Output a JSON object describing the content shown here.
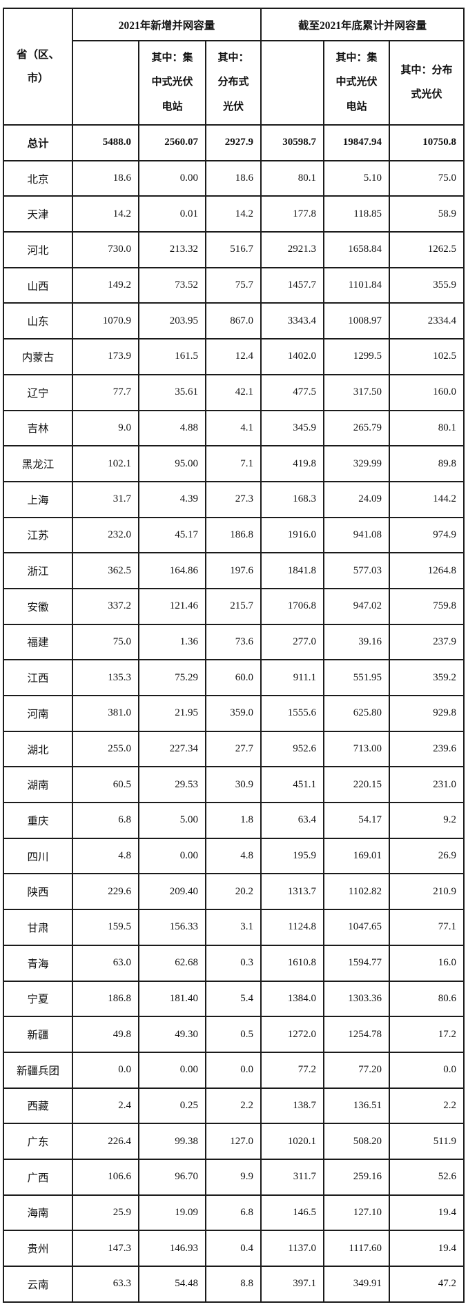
{
  "table": {
    "corner_header": "省（区、\n市）",
    "group_headers": {
      "new_2021": "2021年新增并网容量",
      "cumulative_2021": "截至2021年底累计并网容量"
    },
    "sub_headers": {
      "g1_total": "",
      "g1_centralized": "其中：集\n中式光伏\n电站",
      "g1_distributed": "其中：\n分布式\n光伏",
      "g2_total": "",
      "g2_centralized": "其中：集\n中式光伏\n电站",
      "g2_distributed": "其中：分布\n式光伏"
    },
    "total_row": {
      "label": "总计",
      "values": [
        "5488.0",
        "2560.07",
        "2927.9",
        "30598.7",
        "19847.94",
        "10750.8"
      ]
    },
    "rows": [
      {
        "label": "北京",
        "values": [
          "18.6",
          "0.00",
          "18.6",
          "80.1",
          "5.10",
          "75.0"
        ]
      },
      {
        "label": "天津",
        "values": [
          "14.2",
          "0.01",
          "14.2",
          "177.8",
          "118.85",
          "58.9"
        ]
      },
      {
        "label": "河北",
        "values": [
          "730.0",
          "213.32",
          "516.7",
          "2921.3",
          "1658.84",
          "1262.5"
        ]
      },
      {
        "label": "山西",
        "values": [
          "149.2",
          "73.52",
          "75.7",
          "1457.7",
          "1101.84",
          "355.9"
        ]
      },
      {
        "label": "山东",
        "values": [
          "1070.9",
          "203.95",
          "867.0",
          "3343.4",
          "1008.97",
          "2334.4"
        ]
      },
      {
        "label": "内蒙古",
        "values": [
          "173.9",
          "161.5",
          "12.4",
          "1402.0",
          "1299.5",
          "102.5"
        ]
      },
      {
        "label": "辽宁",
        "values": [
          "77.7",
          "35.61",
          "42.1",
          "477.5",
          "317.50",
          "160.0"
        ]
      },
      {
        "label": "吉林",
        "values": [
          "9.0",
          "4.88",
          "4.1",
          "345.9",
          "265.79",
          "80.1"
        ]
      },
      {
        "label": "黑龙江",
        "values": [
          "102.1",
          "95.00",
          "7.1",
          "419.8",
          "329.99",
          "89.8"
        ]
      },
      {
        "label": "上海",
        "values": [
          "31.7",
          "4.39",
          "27.3",
          "168.3",
          "24.09",
          "144.2"
        ]
      },
      {
        "label": "江苏",
        "values": [
          "232.0",
          "45.17",
          "186.8",
          "1916.0",
          "941.08",
          "974.9"
        ]
      },
      {
        "label": "浙江",
        "values": [
          "362.5",
          "164.86",
          "197.6",
          "1841.8",
          "577.03",
          "1264.8"
        ]
      },
      {
        "label": "安徽",
        "values": [
          "337.2",
          "121.46",
          "215.7",
          "1706.8",
          "947.02",
          "759.8"
        ]
      },
      {
        "label": "福建",
        "values": [
          "75.0",
          "1.36",
          "73.6",
          "277.0",
          "39.16",
          "237.9"
        ]
      },
      {
        "label": "江西",
        "values": [
          "135.3",
          "75.29",
          "60.0",
          "911.1",
          "551.95",
          "359.2"
        ]
      },
      {
        "label": "河南",
        "values": [
          "381.0",
          "21.95",
          "359.0",
          "1555.6",
          "625.80",
          "929.8"
        ]
      },
      {
        "label": "湖北",
        "values": [
          "255.0",
          "227.34",
          "27.7",
          "952.6",
          "713.00",
          "239.6"
        ]
      },
      {
        "label": "湖南",
        "values": [
          "60.5",
          "29.53",
          "30.9",
          "451.1",
          "220.15",
          "231.0"
        ]
      },
      {
        "label": "重庆",
        "values": [
          "6.8",
          "5.00",
          "1.8",
          "63.4",
          "54.17",
          "9.2"
        ]
      },
      {
        "label": "四川",
        "values": [
          "4.8",
          "0.00",
          "4.8",
          "195.9",
          "169.01",
          "26.9"
        ]
      },
      {
        "label": "陕西",
        "values": [
          "229.6",
          "209.40",
          "20.2",
          "1313.7",
          "1102.82",
          "210.9"
        ]
      },
      {
        "label": "甘肃",
        "values": [
          "159.5",
          "156.33",
          "3.1",
          "1124.8",
          "1047.65",
          "77.1"
        ]
      },
      {
        "label": "青海",
        "values": [
          "63.0",
          "62.68",
          "0.3",
          "1610.8",
          "1594.77",
          "16.0"
        ]
      },
      {
        "label": "宁夏",
        "values": [
          "186.8",
          "181.40",
          "5.4",
          "1384.0",
          "1303.36",
          "80.6"
        ]
      },
      {
        "label": "新疆",
        "values": [
          "49.8",
          "49.30",
          "0.5",
          "1272.0",
          "1254.78",
          "17.2"
        ]
      },
      {
        "label": "新疆兵团",
        "values": [
          "0.0",
          "0.00",
          "0.0",
          "77.2",
          "77.20",
          "0.0"
        ]
      },
      {
        "label": "西藏",
        "values": [
          "2.4",
          "0.25",
          "2.2",
          "138.7",
          "136.51",
          "2.2"
        ]
      },
      {
        "label": "广东",
        "values": [
          "226.4",
          "99.38",
          "127.0",
          "1020.1",
          "508.20",
          "511.9"
        ]
      },
      {
        "label": "广西",
        "values": [
          "106.6",
          "96.70",
          "9.9",
          "311.7",
          "259.16",
          "52.6"
        ]
      },
      {
        "label": "海南",
        "values": [
          "25.9",
          "19.09",
          "6.8",
          "146.5",
          "127.10",
          "19.4"
        ]
      },
      {
        "label": "贵州",
        "values": [
          "147.3",
          "146.93",
          "0.4",
          "1137.0",
          "1117.60",
          "19.4"
        ]
      },
      {
        "label": "云南",
        "values": [
          "63.3",
          "54.48",
          "8.8",
          "397.1",
          "349.91",
          "47.2"
        ]
      }
    ]
  }
}
